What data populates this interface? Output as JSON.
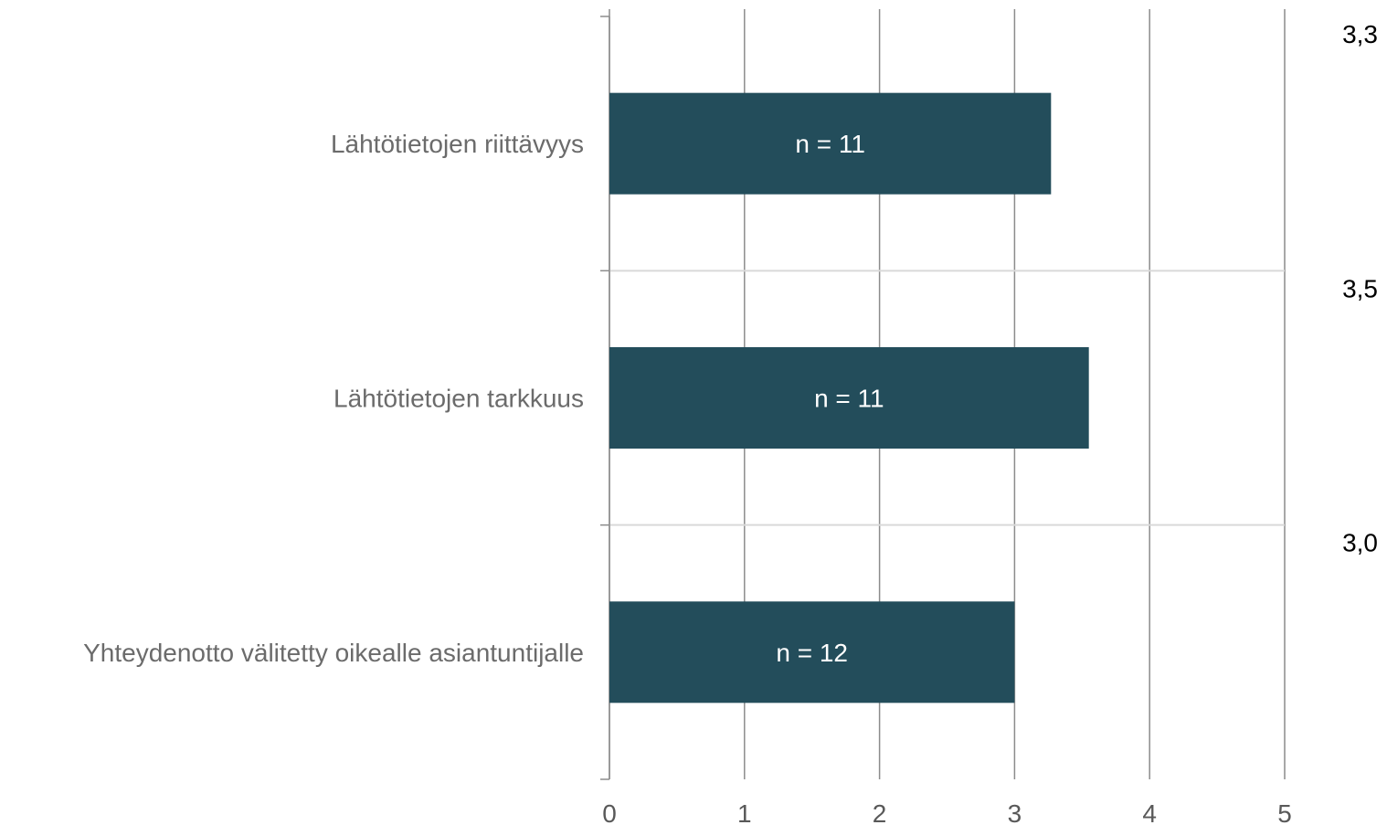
{
  "chart_data": {
    "type": "bar",
    "orientation": "horizontal",
    "categories": [
      "Lähtötietojen riittävyys",
      "Lähtötietojen tarkkuus",
      "Yhteydenotto välitetty oikealle asiantuntijalle"
    ],
    "values": [
      3.27,
      3.55,
      3.0
    ],
    "value_labels": [
      "3,3",
      "3,5",
      "3,0"
    ],
    "bar_labels": [
      "n = 11",
      "n = 11",
      "n = 12"
    ],
    "xlim": [
      0,
      5
    ],
    "xticks": [
      0,
      1,
      2,
      3,
      4,
      5
    ],
    "title": "",
    "xlabel": "",
    "ylabel": "",
    "grid": true,
    "colors": {
      "bar": "#234d5b",
      "grid": "#8c8c8c",
      "separator": "#d9d9d9",
      "axis": "#8c8c8c"
    }
  }
}
